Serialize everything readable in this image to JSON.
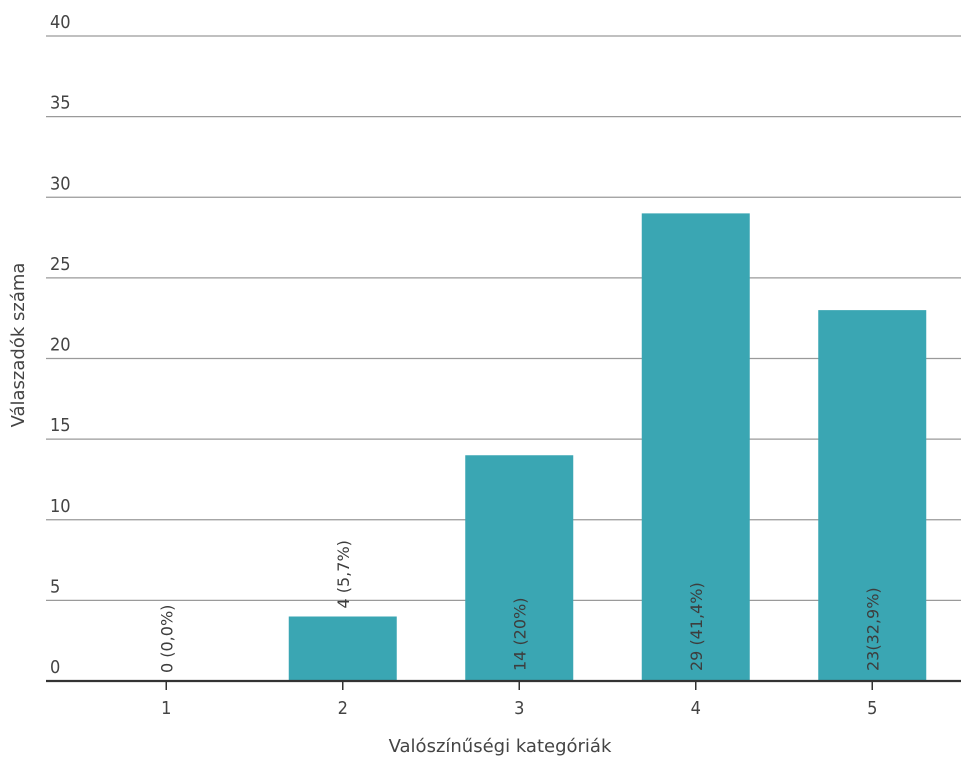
{
  "chart_data": {
    "type": "bar",
    "categories": [
      "1",
      "2",
      "3",
      "4",
      "5"
    ],
    "values": [
      0,
      4,
      14,
      29,
      23
    ],
    "data_labels": [
      "0 (0,0%)",
      "4 (5,7%)",
      "14 (20%)",
      "29 (41,4%)",
      "23(32,9%)"
    ],
    "title": "",
    "xlabel": "Valószínűségi kategóriák",
    "ylabel": "Válaszadók száma",
    "ylim": [
      0,
      40
    ],
    "yticks": [
      0,
      5,
      10,
      15,
      20,
      25,
      30,
      35,
      40
    ],
    "grid": true,
    "legend": "none",
    "bar_color": "#3aa6b3",
    "label_orientation": "vertical"
  }
}
